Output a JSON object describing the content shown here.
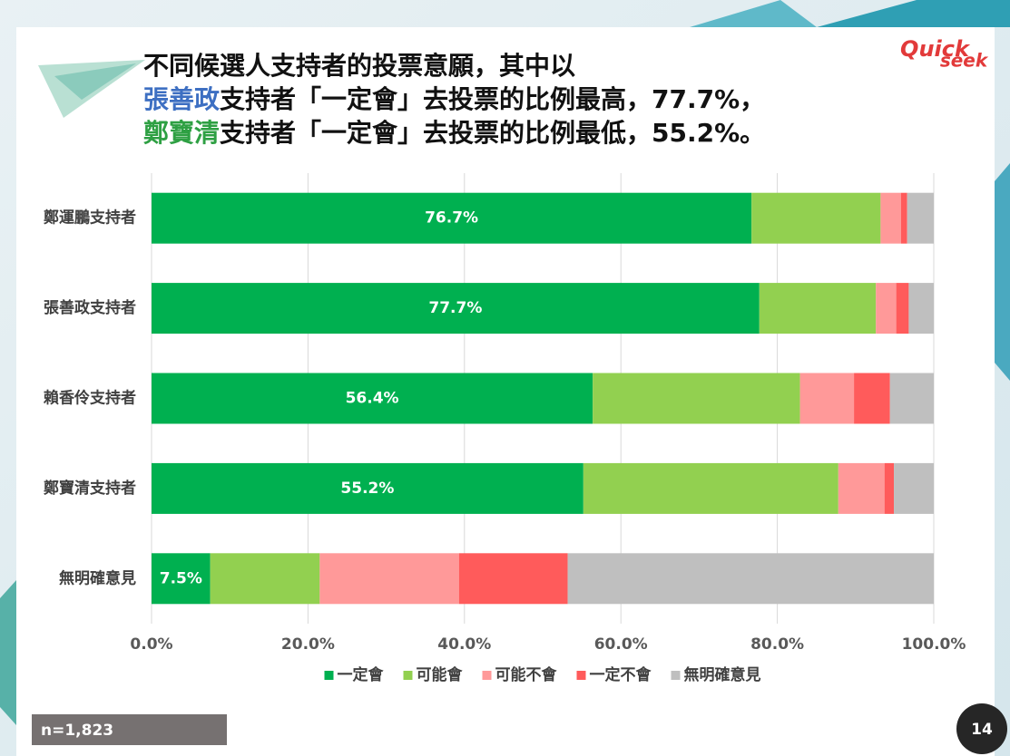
{
  "chart_data": {
    "type": "stacked-bar-horizontal",
    "title": [
      [
        {
          "text": "不同候選人支持者的投票意願，其中以"
        }
      ],
      [
        {
          "text": "張善政",
          "color": "#3d6fc2"
        },
        {
          "text": "支持者「一定會」去投票的比例最高，77.7%，"
        }
      ],
      [
        {
          "text": "鄭寶清",
          "color": "#2ea043"
        },
        {
          "text": "支持者「一定會」去投票的比例最低，55.2%。"
        }
      ]
    ],
    "categories": [
      "鄭運鵬支持者",
      "張善政支持者",
      "賴香伶支持者",
      "鄭寶清支持者",
      "無明確意見"
    ],
    "series": [
      {
        "name": "一定會",
        "color": "#00b050",
        "values": [
          76.7,
          77.7,
          56.4,
          55.2,
          7.5
        ],
        "value_labels": [
          "76.7%",
          "77.7%",
          "56.4%",
          "55.2%",
          "7.5%"
        ]
      },
      {
        "name": "可能會",
        "color": "#92d050",
        "values": [
          16.5,
          14.9,
          26.5,
          32.6,
          14.0
        ]
      },
      {
        "name": "可能不會",
        "color": "#ff9999",
        "values": [
          2.6,
          2.6,
          6.9,
          5.9,
          17.8
        ]
      },
      {
        "name": "一定不會",
        "color": "#ff5b5b",
        "values": [
          0.8,
          1.6,
          4.6,
          1.2,
          13.9
        ]
      },
      {
        "name": "無明確意見",
        "color": "#bfbfbf",
        "values": [
          3.4,
          3.2,
          5.6,
          5.1,
          46.8
        ]
      }
    ],
    "xlim": [
      0,
      100
    ],
    "xticks": [
      {
        "value": 0,
        "label": "0.0%"
      },
      {
        "value": 20,
        "label": "20.0%"
      },
      {
        "value": 40,
        "label": "40.0%"
      },
      {
        "value": 60,
        "label": "60.0%"
      },
      {
        "value": 80,
        "label": "80.0%"
      },
      {
        "value": 100,
        "label": "100.0%"
      }
    ],
    "grid": true,
    "legend": "bottom"
  },
  "logo": {
    "top": "Quick",
    "bottom": "seek"
  },
  "footer": {
    "sample": "n=1,823",
    "page": "14"
  }
}
